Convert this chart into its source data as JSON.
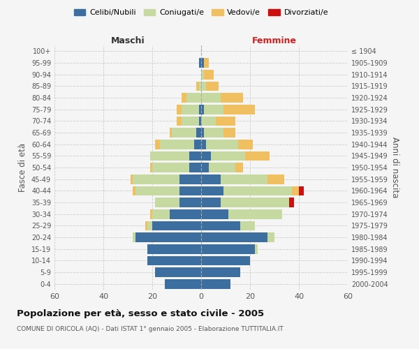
{
  "age_groups": [
    "0-4",
    "5-9",
    "10-14",
    "15-19",
    "20-24",
    "25-29",
    "30-34",
    "35-39",
    "40-44",
    "45-49",
    "50-54",
    "55-59",
    "60-64",
    "65-69",
    "70-74",
    "75-79",
    "80-84",
    "85-89",
    "90-94",
    "95-99",
    "100+"
  ],
  "birth_years": [
    "2000-2004",
    "1995-1999",
    "1990-1994",
    "1985-1989",
    "1980-1984",
    "1975-1979",
    "1970-1974",
    "1965-1969",
    "1960-1964",
    "1955-1959",
    "1950-1954",
    "1945-1949",
    "1940-1944",
    "1935-1939",
    "1930-1934",
    "1925-1929",
    "1920-1924",
    "1915-1919",
    "1910-1914",
    "1905-1909",
    "≤ 1904"
  ],
  "males": {
    "celibi": [
      15,
      19,
      22,
      22,
      27,
      20,
      13,
      9,
      9,
      9,
      5,
      5,
      3,
      2,
      1,
      1,
      0,
      0,
      0,
      1,
      0
    ],
    "coniugati": [
      0,
      0,
      0,
      0,
      1,
      2,
      7,
      10,
      18,
      19,
      15,
      16,
      14,
      10,
      7,
      7,
      6,
      1,
      0,
      0,
      0
    ],
    "vedovi": [
      0,
      0,
      0,
      0,
      0,
      1,
      1,
      0,
      1,
      1,
      1,
      0,
      2,
      1,
      2,
      2,
      2,
      1,
      0,
      0,
      0
    ],
    "divorziati": [
      0,
      0,
      0,
      0,
      0,
      0,
      0,
      0,
      0,
      0,
      0,
      0,
      0,
      0,
      0,
      0,
      0,
      0,
      0,
      0,
      0
    ]
  },
  "females": {
    "nubili": [
      12,
      16,
      20,
      22,
      27,
      16,
      11,
      8,
      9,
      8,
      3,
      4,
      2,
      1,
      0,
      1,
      0,
      0,
      0,
      1,
      0
    ],
    "coniugate": [
      0,
      0,
      0,
      1,
      3,
      6,
      22,
      28,
      28,
      19,
      11,
      14,
      13,
      8,
      6,
      8,
      8,
      2,
      1,
      0,
      0
    ],
    "vedove": [
      0,
      0,
      0,
      0,
      0,
      0,
      0,
      0,
      3,
      7,
      3,
      10,
      6,
      5,
      8,
      13,
      9,
      5,
      4,
      2,
      0
    ],
    "divorziate": [
      0,
      0,
      0,
      0,
      0,
      0,
      0,
      2,
      2,
      0,
      0,
      0,
      0,
      0,
      0,
      0,
      0,
      0,
      0,
      0,
      0
    ]
  },
  "colors": {
    "celibi_nubili": "#3c6fa0",
    "coniugati": "#c5d9a0",
    "vedovi": "#f0c060",
    "divorziati": "#cc1010"
  },
  "xlim": 60,
  "title": "Popolazione per età, sesso e stato civile - 2005",
  "subtitle": "COMUNE DI ORICOLA (AQ) - Dati ISTAT 1° gennaio 2005 - Elaborazione TUTTITALIA.IT",
  "ylabel_left": "Fasce di età",
  "ylabel_right": "Anni di nascita",
  "xlabel_left": "Maschi",
  "xlabel_right": "Femmine",
  "legend_labels": [
    "Celibi/Nubili",
    "Coniugati/e",
    "Vedovi/e",
    "Divorziati/e"
  ],
  "bg_color": "#f5f5f5",
  "grid_color": "#cccccc"
}
